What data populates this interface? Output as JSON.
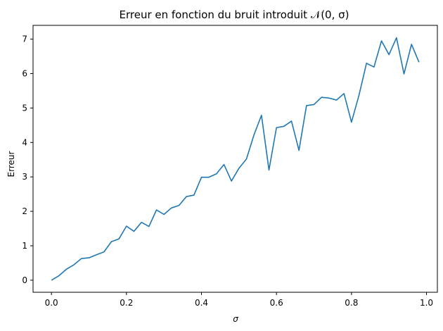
{
  "chart_data": {
    "type": "line",
    "title": "Erreur en fonction du bruit introduit 𝒩(0, σ)",
    "xlabel": "σ",
    "ylabel": "Erreur",
    "xlim": [
      -0.049,
      1.029
    ],
    "ylim": [
      -0.35,
      7.4
    ],
    "xticks": [
      0.0,
      0.2,
      0.4,
      0.6,
      0.8,
      1.0
    ],
    "xtick_labels": [
      "0.0",
      "0.2",
      "0.4",
      "0.6",
      "0.8",
      "1.0"
    ],
    "yticks": [
      0,
      1,
      2,
      3,
      4,
      5,
      6,
      7
    ],
    "ytick_labels": [
      "0",
      "1",
      "2",
      "3",
      "4",
      "5",
      "6",
      "7"
    ],
    "grid": false,
    "color": "#1f77b4",
    "x": [
      0.0,
      0.02,
      0.04,
      0.06,
      0.08,
      0.1,
      0.12,
      0.14,
      0.16,
      0.18,
      0.2,
      0.22,
      0.24,
      0.26,
      0.28,
      0.3,
      0.32,
      0.34,
      0.36,
      0.38,
      0.4,
      0.42,
      0.44,
      0.46,
      0.48,
      0.5,
      0.52,
      0.54,
      0.56,
      0.58,
      0.6,
      0.62,
      0.64,
      0.66,
      0.68,
      0.7,
      0.72,
      0.74,
      0.76,
      0.78,
      0.8,
      0.82,
      0.84,
      0.86,
      0.88,
      0.9,
      0.92,
      0.94,
      0.96,
      0.98
    ],
    "series": [
      {
        "values": [
          0.0,
          0.13,
          0.32,
          0.45,
          0.63,
          0.65,
          0.74,
          0.82,
          1.12,
          1.2,
          1.57,
          1.42,
          1.68,
          1.56,
          2.04,
          1.91,
          2.1,
          2.17,
          2.43,
          2.47,
          2.99,
          2.99,
          3.09,
          3.36,
          2.88,
          3.25,
          3.52,
          4.22,
          4.79,
          3.2,
          4.43,
          4.47,
          4.62,
          3.77,
          5.07,
          5.1,
          5.31,
          5.29,
          5.23,
          5.42,
          4.59,
          5.37,
          6.3,
          6.19,
          6.95,
          6.55,
          7.04,
          5.99,
          6.85,
          6.33
        ]
      }
    ]
  }
}
